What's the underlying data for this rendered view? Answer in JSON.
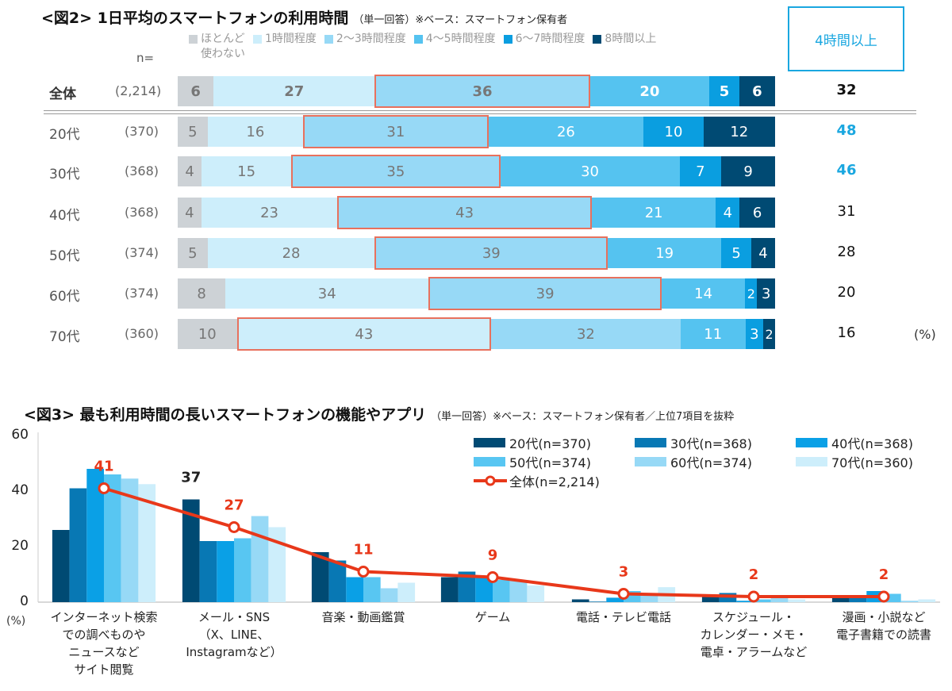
{
  "fig2": {
    "title": "<図2> 1日平均のスマートフォンの利用時間",
    "subtitle": "（単一回答）※ベース：スマートフォン保有者",
    "n_label": "n=",
    "highlight_box_label": "4時間以上",
    "unit": "(%)",
    "colors": [
      "#cdd2d6",
      "#cdeefb",
      "#97d9f6",
      "#55c3f0",
      "#0a9ee0",
      "#004a73"
    ],
    "highlight_color": "#e8715d",
    "accent_color": "#1aa7e0"
  },
  "chart_data": [
    {
      "type": "bar",
      "stacked": true,
      "orientation": "horizontal",
      "legend": [
        "ほとんど\n使わない",
        "1時間程度",
        "2～3時間程度",
        "4～5時間程度",
        "6～7時間程度",
        "8時間以上"
      ],
      "legend_placement": "top",
      "categories": [
        "全体",
        "20代",
        "30代",
        "40代",
        "50代",
        "60代",
        "70代"
      ],
      "n": [
        "(2,214)",
        "(370)",
        "(368)",
        "(368)",
        "(374)",
        "(374)",
        "(360)"
      ],
      "values": [
        [
          6,
          27,
          36,
          20,
          5,
          6
        ],
        [
          5,
          16,
          31,
          26,
          10,
          12
        ],
        [
          4,
          15,
          35,
          30,
          7,
          9
        ],
        [
          4,
          23,
          43,
          21,
          4,
          6
        ],
        [
          5,
          28,
          39,
          19,
          5,
          4
        ],
        [
          8,
          34,
          39,
          14,
          2,
          3
        ],
        [
          10,
          43,
          32,
          11,
          3,
          2
        ]
      ],
      "highlighted_segment": [
        2,
        2,
        2,
        2,
        2,
        2,
        1
      ],
      "totals_4h_plus": [
        32,
        48,
        46,
        31,
        28,
        20,
        16
      ],
      "totals_emphasized": [
        false,
        true,
        true,
        false,
        false,
        false,
        false
      ],
      "unit": "(%)"
    },
    {
      "type": "bar+line",
      "title": "<図3> 最も利用時間の長いスマートフォンの機能やアプリ",
      "subtitle": "（単一回答）※ベース：スマートフォン保有者／上位7項目を抜粋",
      "ylabel": "(%)",
      "ylim": [
        0,
        60
      ],
      "yticks": [
        "0",
        "20",
        "40",
        "60"
      ],
      "categories": [
        "インターネット検索\nでの調べものや\nニュースなど\nサイト閲覧",
        "メール・SNS\n（X、LINE、\nInstagramなど）",
        "音楽・動画鑑賞",
        "ゲーム",
        "電話・テレビ電話",
        "スケジュール・\nカレンダー・メモ・\n電卓・アラームなど",
        "漫画・小説など\n電子書籍での読書"
      ],
      "series": [
        {
          "name": "20代(n=370)",
          "color": "#004a73",
          "values": [
            26,
            37,
            18,
            9,
            1,
            2,
            1.5
          ]
        },
        {
          "name": "30代(n=368)",
          "color": "#0878b4",
          "values": [
            41,
            22,
            15,
            11,
            0.2,
            3.3,
            2
          ]
        },
        {
          "name": "40代(n=368)",
          "color": "#0aa0e6",
          "values": [
            48,
            22,
            9,
            9,
            1.6,
            0.5,
            4
          ]
        },
        {
          "name": "50代(n=374)",
          "color": "#58c6f2",
          "values": [
            46,
            23,
            9,
            8,
            4,
            1,
            3
          ]
        },
        {
          "name": "60代(n=374)",
          "color": "#97d9f6",
          "values": [
            44.5,
            31,
            5,
            8,
            3,
            1.4,
            0.5
          ]
        },
        {
          "name": "70代(n=360)",
          "color": "#cdeefb",
          "values": [
            42.5,
            27,
            7,
            6,
            5.4,
            1,
            1
          ]
        }
      ],
      "line": {
        "name": "全体(n=2,214)",
        "color": "#e8381a",
        "values": [
          41,
          27,
          11,
          9,
          3,
          2,
          2
        ]
      },
      "annotations": [
        {
          "category": 1,
          "series": "20代(n=370)",
          "label": "37"
        }
      ],
      "legend_placement": "top-right",
      "grid": false
    }
  ]
}
